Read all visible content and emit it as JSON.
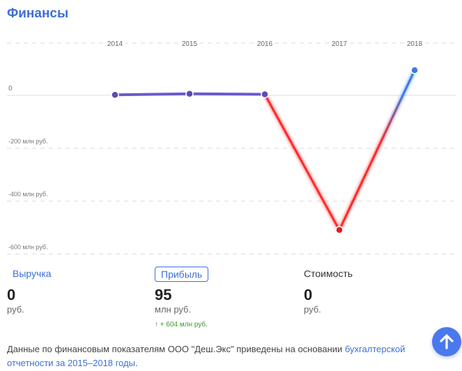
{
  "title": "Финансы",
  "tabs": {
    "revenue": "Выручка",
    "profit": "Прибыль",
    "cost": "Стоимость"
  },
  "metrics": {
    "revenue": {
      "value": "0",
      "unit": "руб."
    },
    "profit": {
      "value": "95",
      "unit": "млн руб.",
      "delta": "↑ + 604 млн руб."
    },
    "cost": {
      "value": "0",
      "unit": "руб."
    }
  },
  "note": {
    "text": "Данные по финансовым показателям ООО \"Деш.Экс\" приведены на основании ",
    "link": "бухгалтерской отчетности за 2015–2018 годы",
    "end": "."
  },
  "colors": {
    "accent": "#3d6fd9",
    "positive": "#6a5acd",
    "negative": "#ff2a2a",
    "last": "#3a7ae8"
  },
  "icons": {
    "scroll_top": "arrow-up-icon"
  },
  "chart_data": {
    "type": "line",
    "x": [
      "2014",
      "2015",
      "2016",
      "2017",
      "2018"
    ],
    "series": [
      {
        "values": [
          2,
          6,
          4,
          -509,
          95
        ]
      }
    ],
    "yticks": [
      {
        "value": 0,
        "label": "0"
      },
      {
        "value": -200,
        "label": "-200 млн руб."
      },
      {
        "value": -400,
        "label": "-400 млн руб."
      },
      {
        "value": -600,
        "label": "-600 млн руб."
      }
    ],
    "ylim": [
      -640,
      180
    ],
    "grid": true
  }
}
